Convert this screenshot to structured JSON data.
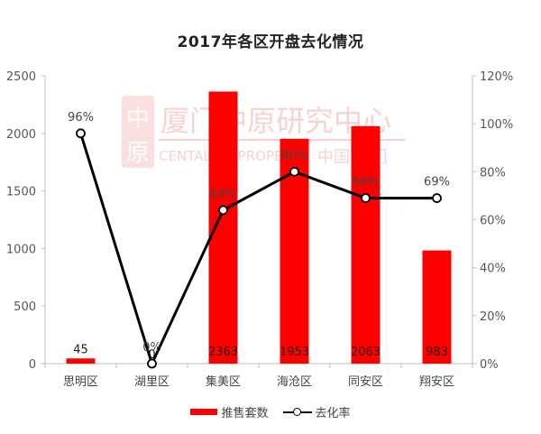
{
  "title": "2017年各区开盘去化情况",
  "watermark": {
    "logo_top": "中",
    "logo_bottom": "原",
    "cn_text": "厦门中原研究中心",
    "en_text": "CENTALINE PROPERTY",
    "cn_sub": "中国·厦门"
  },
  "legend": {
    "bar_label": "推售套数",
    "line_label": "去化率"
  },
  "colors": {
    "bar": "#ff0000",
    "line": "#000000",
    "axis": "#bfbfbf"
  },
  "chart_data": {
    "type": "bar+line",
    "title": "2017年各区开盘去化情况",
    "categories": [
      "思明区",
      "湖里区",
      "集美区",
      "海沧区",
      "同安区",
      "翔安区"
    ],
    "series": [
      {
        "name": "推售套数",
        "type": "bar",
        "axis": "left",
        "values": [
          45,
          0,
          2363,
          1953,
          2063,
          983
        ]
      },
      {
        "name": "去化率",
        "type": "line",
        "axis": "right",
        "values": [
          0.96,
          0.0,
          0.64,
          0.8,
          0.69,
          0.69
        ],
        "labels": [
          "96%",
          "0%",
          "64%",
          "80%",
          "69%",
          "69%"
        ]
      }
    ],
    "y_left": {
      "ticks": [
        "0",
        "500",
        "1000",
        "1500",
        "2000",
        "2500"
      ],
      "range": [
        0,
        2500
      ]
    },
    "y_right": {
      "ticks": [
        "0%",
        "20%",
        "40%",
        "60%",
        "80%",
        "100%",
        "120%"
      ],
      "range": [
        0,
        1.2
      ]
    },
    "xlabel": "",
    "ylabel": "",
    "grid": false,
    "legend_position": "bottom"
  }
}
